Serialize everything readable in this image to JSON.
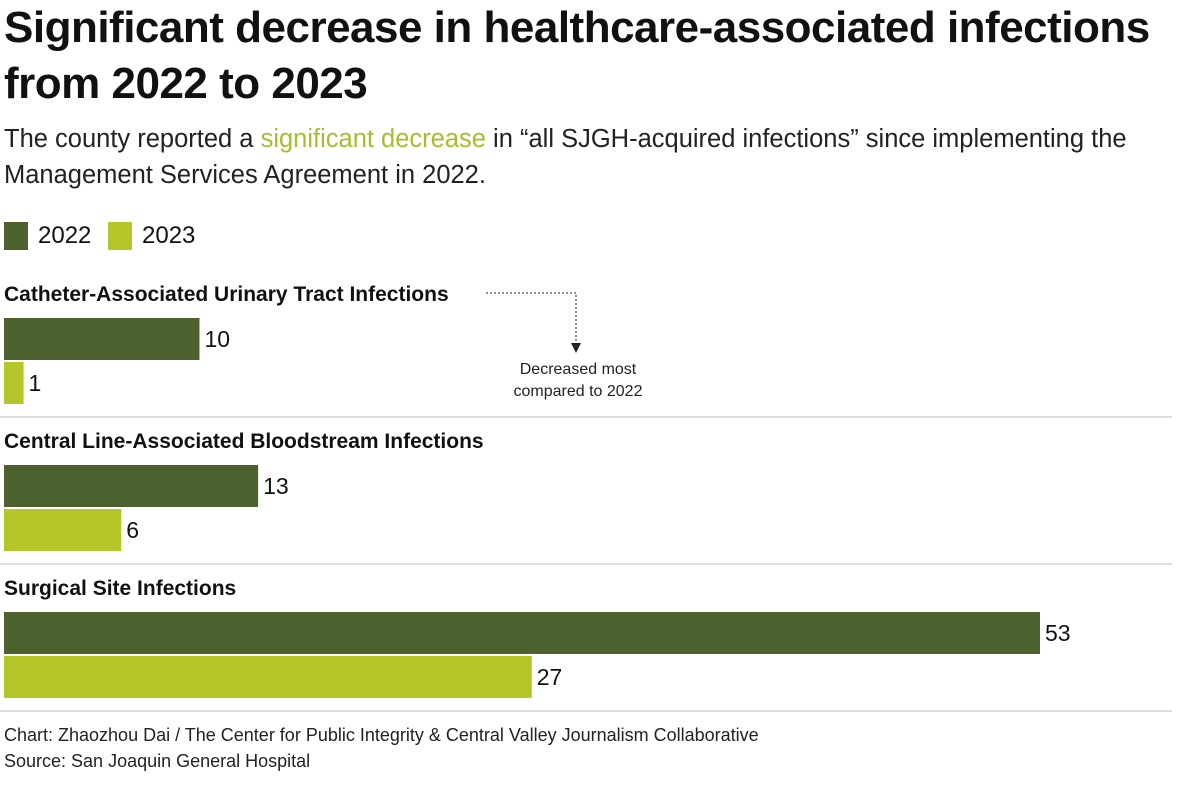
{
  "title": "Significant decrease in healthcare-associated infections from 2022 to 2023",
  "subtitle": {
    "before": "The county reported a ",
    "highlight": "significant decrease",
    "after": " in “all SJGH-acquired infections” since implementing the Management Services Agreement in 2022."
  },
  "colors": {
    "series_2022": "#4d612e",
    "series_2023": "#b5c62b",
    "highlight_text": "#a6be2c",
    "separator": "#d4d4d4"
  },
  "legend": {
    "position": "top-left",
    "items": [
      {
        "label": "2022"
      },
      {
        "label": "2023"
      }
    ]
  },
  "chart_data": {
    "type": "bar",
    "orientation": "horizontal",
    "categories": [
      "Catheter-Associated Urinary Tract Infections",
      "Central Line-Associated Bloodstream Infections",
      "Surgical Site Infections"
    ],
    "series": [
      {
        "name": "2022",
        "values": [
          10,
          13,
          53
        ]
      },
      {
        "name": "2023",
        "values": [
          1,
          6,
          27
        ]
      }
    ],
    "xlim": [
      0,
      53
    ],
    "grid": false,
    "annotations": [
      {
        "text_lines": [
          "Decreased most",
          "compared to 2022"
        ],
        "target_category": "Catheter-Associated Urinary Tract Infections"
      }
    ]
  },
  "credits": {
    "chart": "Chart: Zhaozhou Dai / The Center for Public Integrity & Central Valley Journalism Collaborative",
    "source": "Source: San Joaquin General Hospital"
  }
}
